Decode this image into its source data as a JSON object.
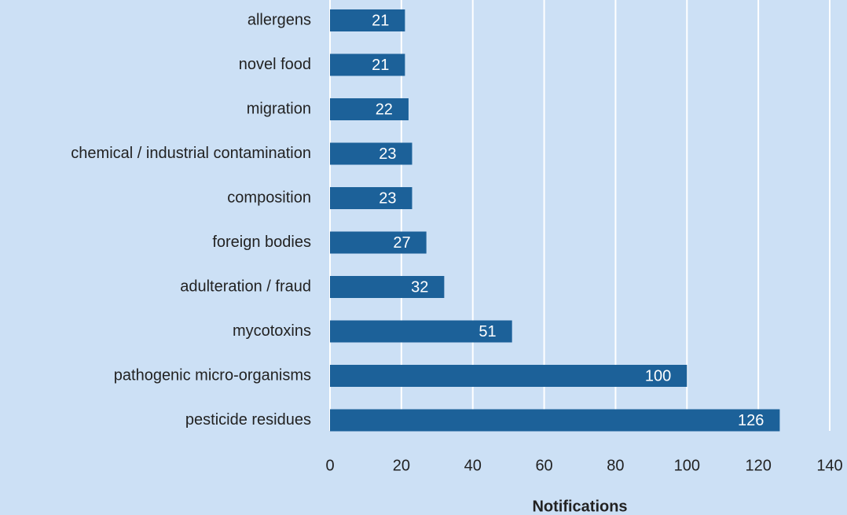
{
  "chart_data": {
    "type": "bar",
    "orientation": "horizontal",
    "x_label": "Notifications",
    "categories": [
      "allergens",
      "novel food",
      "migration",
      "chemical / industrial contamination",
      "composition",
      "foreign bodies",
      "adulteration / fraud",
      "mycotoxins",
      "pathogenic micro-organisms",
      "pesticide residues"
    ],
    "values": [
      21,
      21,
      22,
      23,
      23,
      27,
      32,
      51,
      100,
      126
    ],
    "color": "#1c6199",
    "xlim": [
      0,
      140
    ],
    "xticks": [
      0,
      20,
      40,
      60,
      80,
      100,
      120,
      140
    ],
    "grid": true
  }
}
